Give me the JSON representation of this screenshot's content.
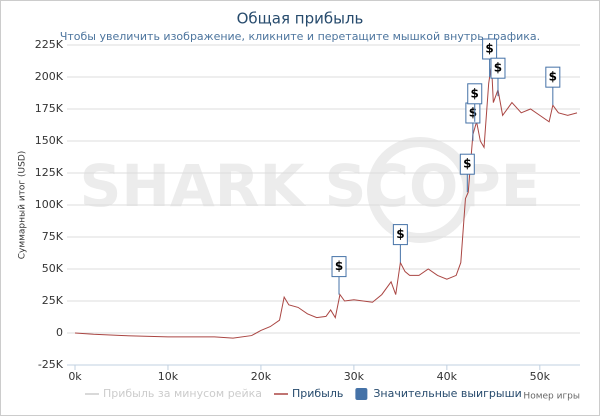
{
  "chart_data": {
    "type": "line",
    "title": "Общая прибыль",
    "subtitle": "Чтобы увеличить изображение, кликните и перетащите мышкой внутрь графика.",
    "watermark": "SHARK SCOPE",
    "y_label": "Суммарный итог (USD)",
    "x_label": "Номер игры",
    "xlim": [
      0,
      54000
    ],
    "ylim": [
      -25000,
      225000
    ],
    "xticks": [
      {
        "value": 0,
        "label": "0k"
      },
      {
        "value": 10000,
        "label": "10k"
      },
      {
        "value": 20000,
        "label": "20k"
      },
      {
        "value": 30000,
        "label": "30k"
      },
      {
        "value": 40000,
        "label": "40k"
      },
      {
        "value": 50000,
        "label": "50k"
      }
    ],
    "yticks": [
      {
        "value": -25000,
        "label": "-25K"
      },
      0,
      {
        "value": 25000,
        "label": "25K"
      },
      {
        "value": 50000,
        "label": "50K"
      },
      {
        "value": 75000,
        "label": "75K"
      },
      {
        "value": 100000,
        "label": "100K"
      },
      {
        "value": 125000,
        "label": "125K"
      },
      {
        "value": 150000,
        "label": "150K"
      },
      {
        "value": 175000,
        "label": "175K"
      },
      {
        "value": 200000,
        "label": "200K"
      },
      {
        "value": 225000,
        "label": "225K"
      }
    ],
    "grid": true,
    "flag_label": "$",
    "series": [
      {
        "name": "Прибыль за минусом рейка",
        "color": "#cccccc",
        "kind": "line",
        "visible": false,
        "x": [],
        "values": []
      },
      {
        "name": "Прибыль",
        "color": "#aa4643",
        "kind": "line",
        "visible": true,
        "x": [
          0,
          2000,
          5000,
          10000,
          15000,
          17000,
          19000,
          20000,
          21000,
          22000,
          22500,
          23000,
          24000,
          25000,
          26000,
          27000,
          27500,
          28000,
          28500,
          29000,
          30000,
          31000,
          32000,
          33000,
          34000,
          34500,
          35000,
          35500,
          36000,
          37000,
          38000,
          39000,
          40000,
          41000,
          41500,
          42000,
          42300,
          42800,
          43200,
          43600,
          44000,
          44500,
          44800,
          45000,
          45500,
          46000,
          47000,
          48000,
          49000,
          50000,
          51000,
          51400,
          52000,
          53000,
          54000
        ],
        "values": [
          0,
          -1000,
          -2000,
          -3000,
          -3000,
          -4000,
          -2000,
          2000,
          5000,
          10000,
          28000,
          22000,
          20000,
          15000,
          12000,
          13000,
          18000,
          12000,
          30000,
          25000,
          26000,
          25000,
          24000,
          30000,
          40000,
          30000,
          55000,
          48000,
          45000,
          45000,
          50000,
          45000,
          42000,
          45000,
          55000,
          105000,
          110000,
          155000,
          165000,
          150000,
          145000,
          195000,
          210000,
          180000,
          190000,
          170000,
          180000,
          172000,
          175000,
          170000,
          165000,
          178000,
          172000,
          170000,
          172000
        ]
      },
      {
        "name": "Значительные выигрыши",
        "color": "#4572a7",
        "kind": "flag",
        "visible": true,
        "x": [
          28400,
          35000,
          42200,
          42800,
          43000,
          44600,
          45500,
          51400
        ],
        "values": [
          30000,
          55000,
          110000,
          150000,
          165000,
          200000,
          185000,
          178000
        ]
      }
    ]
  }
}
